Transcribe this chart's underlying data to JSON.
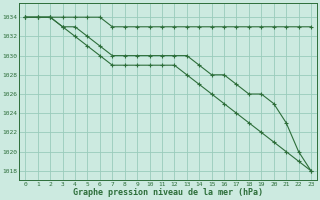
{
  "title": "Graphe pression niveau de la mer (hPa)",
  "background_color": "#cceae0",
  "grid_color": "#99ccbb",
  "line_color": "#2d6e3a",
  "xlim": [
    -0.5,
    23.5
  ],
  "ylim": [
    1017,
    1035.5
  ],
  "yticks": [
    1018,
    1020,
    1022,
    1024,
    1026,
    1028,
    1030,
    1032,
    1034
  ],
  "xticks": [
    0,
    1,
    2,
    3,
    4,
    5,
    6,
    7,
    8,
    9,
    10,
    11,
    12,
    13,
    14,
    15,
    16,
    17,
    18,
    19,
    20,
    21,
    22,
    23
  ],
  "line1": [
    1034,
    1034,
    1034,
    1034,
    1034,
    1034,
    1034,
    1033,
    1033,
    1033,
    1033,
    1033,
    1033,
    1033,
    1033,
    1033,
    1033,
    1033,
    1033,
    1033,
    1033,
    1033,
    1033,
    1033
  ],
  "line2": [
    1034,
    1034,
    1034,
    1033,
    1033,
    1032,
    1031,
    1030,
    1030,
    1030,
    1030,
    1030,
    1030,
    1030,
    1029,
    1028,
    1028,
    1027,
    1026,
    1026,
    1025,
    1023,
    1020,
    1018
  ],
  "line3": [
    1034,
    1034,
    1034,
    1033,
    1032,
    1031,
    1030,
    1029,
    1029,
    1029,
    1029,
    1029,
    1029,
    1028,
    1027,
    1026,
    1025,
    1024,
    1023,
    1022,
    1021,
    1020,
    1019,
    1018
  ]
}
